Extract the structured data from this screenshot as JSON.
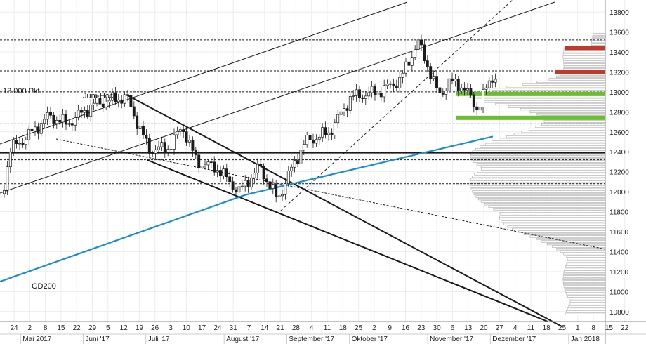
{
  "chart_data": {
    "type": "candlestick",
    "y_axis": {
      "ticks": [
        10800,
        11000,
        11200,
        11400,
        11600,
        11800,
        12000,
        12200,
        12400,
        12600,
        12800,
        13000,
        13200,
        13400,
        13600,
        13800
      ],
      "range": [
        10700,
        13920
      ]
    },
    "x_axis": {
      "day_ticks": [
        "24",
        "2",
        "8",
        "15",
        "22",
        "29",
        "5",
        "12",
        "19",
        "26",
        "3",
        "10",
        "17",
        "24",
        "31",
        "7",
        "14",
        "21",
        "28",
        "4",
        "11",
        "18",
        "25",
        "2",
        "9",
        "16",
        "23",
        "30",
        "6",
        "13",
        "20",
        "27",
        "4",
        "11",
        "18",
        "25",
        "1",
        "8",
        "15",
        "22"
      ],
      "month_labels": [
        "Mai 2017",
        "Juni '17",
        "Juli '17",
        "August '17",
        "September '17",
        "Oktober '17",
        "November '17",
        "Dezember '17",
        "Jan 2018"
      ]
    },
    "annotations": {
      "level_label": "13.000 Pkt.",
      "high_label": "Juni-Hoch",
      "ma_label": "GD200"
    },
    "horizontal_levels": [
      {
        "value": 12390,
        "style": "solid"
      },
      {
        "value": 13000,
        "style": "dashed"
      },
      {
        "value": 13520,
        "style": "dashed"
      },
      {
        "value": 13210,
        "style": "dashed"
      },
      {
        "value": 12680,
        "style": "dashed"
      },
      {
        "value": 12320,
        "style": "dashed"
      },
      {
        "value": 12080,
        "style": "dashed"
      }
    ],
    "zones": [
      {
        "value": 13440,
        "color": "#c0392b"
      },
      {
        "value": 13200,
        "color": "#c0392b"
      },
      {
        "value": 12980,
        "color": "#6abf2e"
      },
      {
        "value": 12740,
        "color": "#6abf2e"
      }
    ],
    "colors": {
      "candle": "#1a1a1a",
      "ma200": "#1a8fd0",
      "volume_profile": "#bbbbbb"
    }
  }
}
